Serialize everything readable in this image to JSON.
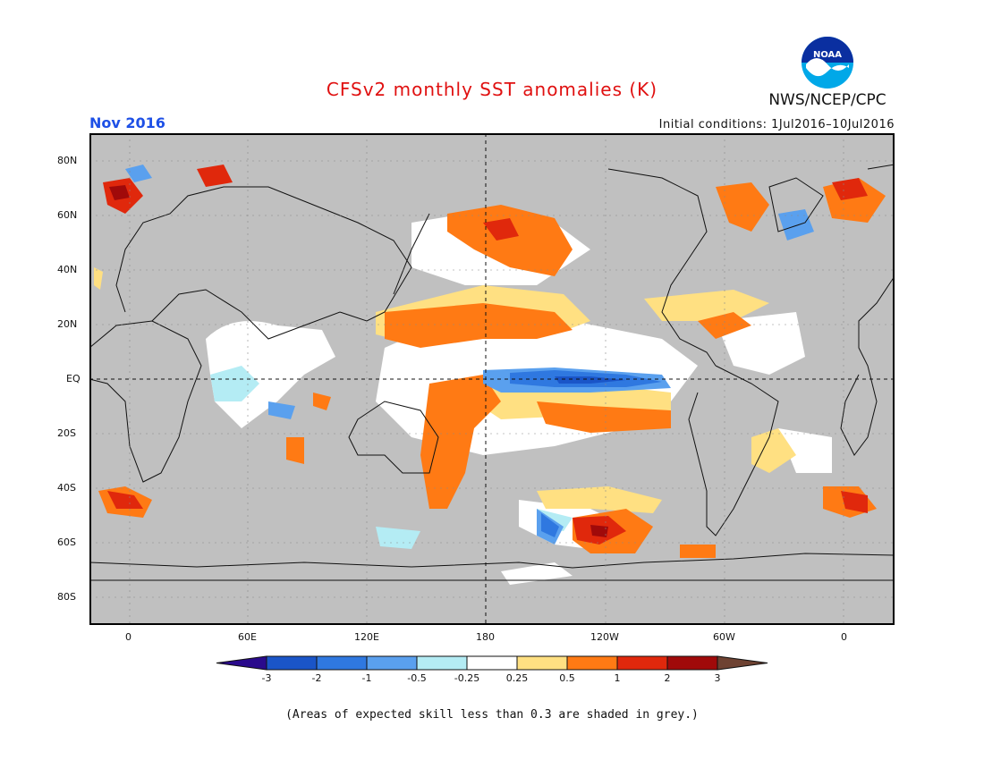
{
  "title": "CFSv2 monthly SST anomalies (K)",
  "month": "Nov 2016",
  "agency": "NWS/NCEP/CPC",
  "logo_text": "NOAA",
  "initial_conditions": "Initial conditions: 1Jul2016–10Jul2016",
  "footnote": "(Areas of expected skill less than 0.3 are shaded in grey.)",
  "colors": {
    "title": "#e01010",
    "month": "#1e50e6",
    "land": "#c8c8c8",
    "skill_grey": "#c0c0c0",
    "ocean_neutral": "#ffffff"
  },
  "lat_labels": [
    "80N",
    "60N",
    "40N",
    "20N",
    "EQ",
    "20S",
    "40S",
    "60S",
    "80S"
  ],
  "lon_labels": [
    "0",
    "60E",
    "120E",
    "180",
    "120W",
    "60W",
    "0"
  ],
  "colorbar": {
    "bins": [
      {
        "color": "#2a0a8c"
      },
      {
        "color": "#1a55c8"
      },
      {
        "color": "#2f78e0"
      },
      {
        "color": "#5aa0ee"
      },
      {
        "color": "#b4ecf4"
      },
      {
        "color": "#ffffff"
      },
      {
        "color": "#ffe082"
      },
      {
        "color": "#ff7a14"
      },
      {
        "color": "#e0280c"
      },
      {
        "color": "#a00a0a"
      },
      {
        "color": "#6e4232"
      }
    ],
    "labels": [
      "-3",
      "-2",
      "-1",
      "-0.5",
      "-0.25",
      "0.25",
      "0.5",
      "1",
      "2",
      "3"
    ]
  }
}
